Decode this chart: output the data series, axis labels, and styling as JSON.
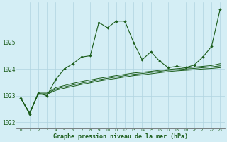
{
  "xlabel": "Graphe pression niveau de la mer (hPa)",
  "xlim": [
    -0.5,
    23.5
  ],
  "ylim": [
    1021.8,
    1026.5
  ],
  "yticks": [
    1022,
    1023,
    1024,
    1025
  ],
  "xticks": [
    0,
    1,
    2,
    3,
    4,
    5,
    6,
    7,
    8,
    9,
    10,
    11,
    12,
    13,
    14,
    15,
    16,
    17,
    18,
    19,
    20,
    21,
    22,
    23
  ],
  "bg_color": "#d4eef5",
  "grid_color": "#b0d4e0",
  "line_color": "#1a5c1a",
  "main_x": [
    0,
    1,
    2,
    3,
    4,
    5,
    6,
    7,
    8,
    9,
    10,
    11,
    12,
    13,
    14,
    15,
    16,
    17,
    18,
    19,
    20,
    21,
    22,
    23
  ],
  "main_y": [
    1022.9,
    1022.3,
    1023.1,
    1023.0,
    1023.6,
    1024.0,
    1024.2,
    1024.45,
    1024.5,
    1025.75,
    1025.55,
    1025.8,
    1025.8,
    1025.0,
    1024.35,
    1024.65,
    1024.3,
    1024.05,
    1024.1,
    1024.05,
    1024.15,
    1024.45,
    1024.85,
    1026.25
  ],
  "trend_lines": [
    {
      "x": [
        0,
        1,
        2,
        3,
        4,
        5,
        6,
        7,
        8,
        9,
        10,
        11,
        12,
        13,
        14,
        15,
        16,
        17,
        18,
        19,
        20,
        21,
        22,
        23
      ],
      "y": [
        1022.9,
        1022.35,
        1023.05,
        1023.05,
        1023.2,
        1023.28,
        1023.35,
        1023.42,
        1023.48,
        1023.55,
        1023.6,
        1023.65,
        1023.7,
        1023.75,
        1023.78,
        1023.82,
        1023.86,
        1023.9,
        1023.93,
        1023.95,
        1023.97,
        1024.0,
        1024.02,
        1024.05
      ]
    },
    {
      "x": [
        0,
        1,
        2,
        3,
        4,
        5,
        6,
        7,
        8,
        9,
        10,
        11,
        12,
        13,
        14,
        15,
        16,
        17,
        18,
        19,
        20,
        21,
        22,
        23
      ],
      "y": [
        1022.9,
        1022.35,
        1023.07,
        1023.07,
        1023.25,
        1023.33,
        1023.4,
        1023.47,
        1023.53,
        1023.6,
        1023.65,
        1023.7,
        1023.75,
        1023.8,
        1023.83,
        1023.87,
        1023.91,
        1023.95,
        1023.97,
        1024.0,
        1024.02,
        1024.05,
        1024.08,
        1024.12
      ]
    },
    {
      "x": [
        0,
        1,
        2,
        3,
        4,
        5,
        6,
        7,
        8,
        9,
        10,
        11,
        12,
        13,
        14,
        15,
        16,
        17,
        18,
        19,
        20,
        21,
        22,
        23
      ],
      "y": [
        1022.9,
        1022.35,
        1023.1,
        1023.1,
        1023.3,
        1023.38,
        1023.46,
        1023.53,
        1023.59,
        1023.65,
        1023.7,
        1023.75,
        1023.8,
        1023.85,
        1023.88,
        1023.91,
        1023.95,
        1023.98,
        1024.01,
        1024.04,
        1024.07,
        1024.1,
        1024.13,
        1024.2
      ]
    }
  ]
}
